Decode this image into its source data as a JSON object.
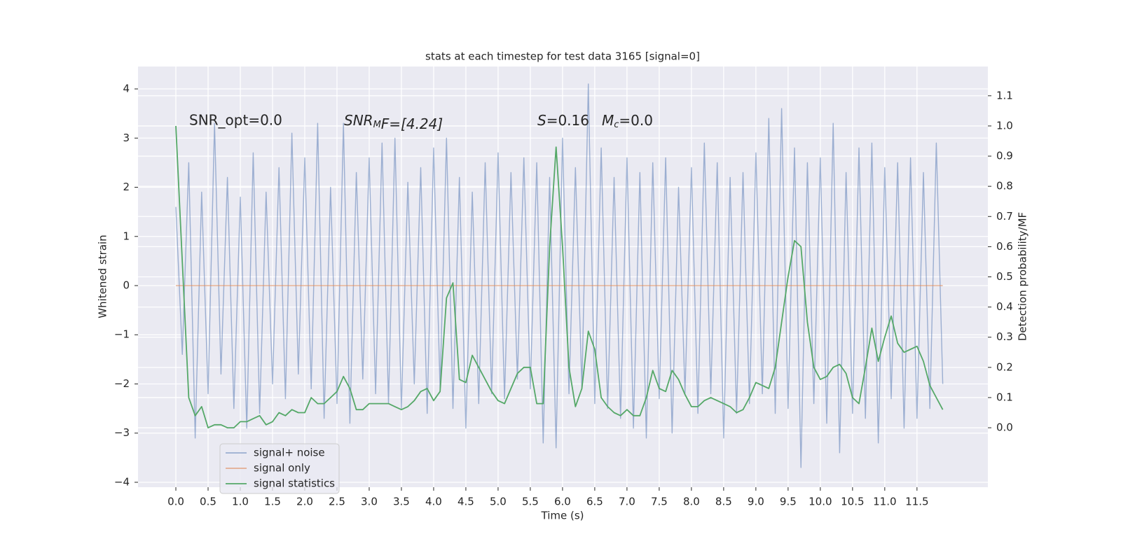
{
  "chart_data": {
    "type": "line",
    "title": "stats at each timestep for test data 3165 [signal=0]",
    "x_label": "Time (s)",
    "y_label": "Whitened strain",
    "y2_label": "Detection probability/MF",
    "annotations": {
      "snr_opt": "SNR_opt=0.0",
      "snr_mf": {
        "base": "SNR",
        "sub": "M",
        "rest": "F=[4.24]"
      },
      "s": {
        "base": "S",
        "rest": "=0.16"
      },
      "mc": {
        "base": "M",
        "sub": "c",
        "rest": "=0.0"
      }
    },
    "grid": true,
    "legend": "lower left",
    "xlim": [
      -0.587,
      12.6
    ],
    "ylim": [
      -4.1,
      4.456
    ],
    "y2lim": [
      -0.197,
      1.197
    ],
    "xticks": [
      {
        "value": 0,
        "label": "0.0"
      },
      {
        "value": 0.5,
        "label": "0.5"
      },
      {
        "value": 1,
        "label": "1.0"
      },
      {
        "value": 1.5,
        "label": "1.5"
      },
      {
        "value": 2,
        "label": "2.0"
      },
      {
        "value": 2.5,
        "label": "2.5"
      },
      {
        "value": 3,
        "label": "3.0"
      },
      {
        "value": 3.5,
        "label": "3.5"
      },
      {
        "value": 4,
        "label": "4.0"
      },
      {
        "value": 4.5,
        "label": "4.5"
      },
      {
        "value": 5,
        "label": "5.0"
      },
      {
        "value": 5.5,
        "label": "5.5"
      },
      {
        "value": 6,
        "label": "6.0"
      },
      {
        "value": 6.5,
        "label": "6.5"
      },
      {
        "value": 7,
        "label": "7.0"
      },
      {
        "value": 7.5,
        "label": "7.5"
      },
      {
        "value": 8,
        "label": "8.0"
      },
      {
        "value": 8.5,
        "label": "8.5"
      },
      {
        "value": 9,
        "label": "9.0"
      },
      {
        "value": 9.5,
        "label": "9.5"
      },
      {
        "value": 10,
        "label": "10.0"
      },
      {
        "value": 10.5,
        "label": "10.5"
      },
      {
        "value": 11,
        "label": "11.0"
      },
      {
        "value": 11.5,
        "label": "11.5"
      }
    ],
    "yticks": [
      {
        "value": -4,
        "label": "−4"
      },
      {
        "value": -3,
        "label": "−3"
      },
      {
        "value": -2,
        "label": "−2"
      },
      {
        "value": -1,
        "label": "−1"
      },
      0,
      1,
      2,
      3,
      4
    ],
    "y2ticks": [
      {
        "value": 0,
        "label": "0.0"
      },
      {
        "value": 0.1,
        "label": "0.1"
      },
      {
        "value": 0.2,
        "label": "0.2"
      },
      {
        "value": 0.3,
        "label": "0.3"
      },
      {
        "value": 0.4,
        "label": "0.4"
      },
      {
        "value": 0.5,
        "label": "0.5"
      },
      {
        "value": 0.6,
        "label": "0.6"
      },
      {
        "value": 0.7,
        "label": "0.7"
      },
      {
        "value": 0.8,
        "label": "0.8"
      },
      {
        "value": 0.9,
        "label": "0.9"
      },
      {
        "value": 1,
        "label": "1.0"
      },
      {
        "value": 1.1,
        "label": "1.1"
      }
    ],
    "x": [
      0,
      0.1,
      0.2,
      0.3,
      0.4,
      0.5,
      0.6,
      0.7,
      0.8,
      0.9,
      1,
      1.1,
      1.2,
      1.3,
      1.4,
      1.5,
      1.6,
      1.7,
      1.8,
      1.9,
      2,
      2.1,
      2.2,
      2.3,
      2.4,
      2.5,
      2.6,
      2.7,
      2.8,
      2.9,
      3,
      3.1,
      3.2,
      3.3,
      3.4,
      3.5,
      3.6,
      3.7,
      3.8,
      3.9,
      4,
      4.1,
      4.2,
      4.3,
      4.4,
      4.5,
      4.6,
      4.7,
      4.8,
      4.9,
      5,
      5.1,
      5.2,
      5.3,
      5.4,
      5.5,
      5.6,
      5.7,
      5.8,
      5.9,
      6,
      6.1,
      6.2,
      6.3,
      6.4,
      6.5,
      6.6,
      6.7,
      6.8,
      6.9,
      7,
      7.1,
      7.2,
      7.3,
      7.4,
      7.5,
      7.6,
      7.7,
      7.8,
      7.9,
      8,
      8.1,
      8.2,
      8.3,
      8.4,
      8.5,
      8.6,
      8.7,
      8.8,
      8.9,
      9,
      9.1,
      9.2,
      9.3,
      9.4,
      9.5,
      9.6,
      9.7,
      9.8,
      9.9,
      10,
      10.1,
      10.2,
      10.3,
      10.4,
      10.5,
      10.6,
      10.7,
      10.8,
      10.9,
      11,
      11.1,
      11.2,
      11.3,
      11.4,
      11.5,
      11.6,
      11.7,
      11.8,
      11.9
    ],
    "series": [
      {
        "name": "signal+ noise",
        "color": "#4c72b0",
        "values": [
          1.6,
          -1.4,
          2.5,
          -3.1,
          1.9,
          -2.2,
          3.3,
          -1.8,
          2.2,
          -2.5,
          1.8,
          -2.9,
          2.7,
          -2.6,
          1.9,
          -2.0,
          2.4,
          -2.3,
          3.1,
          -1.8,
          2.6,
          -2.1,
          3.3,
          -2.7,
          2.0,
          -2.4,
          3.3,
          -2.8,
          2.3,
          -1.9,
          2.6,
          -2.2,
          2.9,
          -2.4,
          3.0,
          -2.5,
          2.1,
          -2.0,
          2.4,
          -2.6,
          2.8,
          -2.1,
          3.0,
          -2.5,
          2.2,
          -2.9,
          1.9,
          -2.4,
          2.5,
          -2.2,
          2.7,
          -2.3,
          2.3,
          -1.9,
          2.6,
          -2.1,
          2.5,
          -3.2,
          2.2,
          -3.3,
          3.0,
          -2.2,
          2.4,
          -2.1,
          4.1,
          -2.4,
          2.8,
          -2.5,
          2.2,
          -2.7,
          2.6,
          -2.9,
          2.3,
          -3.1,
          2.5,
          -2.3,
          2.6,
          -3.0,
          2.0,
          -2.2,
          2.4,
          -2.6,
          2.9,
          -2.2,
          2.5,
          -3.1,
          2.2,
          -2.6,
          2.3,
          -2.4,
          2.7,
          -2.2,
          3.4,
          -2.6,
          3.6,
          -2.5,
          2.8,
          -3.7,
          2.5,
          -2.4,
          2.6,
          -2.8,
          3.3,
          -3.4,
          2.3,
          -2.6,
          2.8,
          -2.7,
          2.9,
          -3.2,
          2.4,
          -2.3,
          2.5,
          -2.9,
          2.6,
          -2.7,
          2.3,
          -2.5,
          2.9,
          -2.0
        ]
      },
      {
        "name": "signal only",
        "color": "#dd8452",
        "values": [
          0,
          0,
          0,
          0,
          0,
          0,
          0,
          0,
          0,
          0,
          0,
          0,
          0,
          0,
          0,
          0,
          0,
          0,
          0,
          0,
          0,
          0,
          0,
          0,
          0,
          0,
          0,
          0,
          0,
          0,
          0,
          0,
          0,
          0,
          0,
          0,
          0,
          0,
          0,
          0,
          0,
          0,
          0,
          0,
          0,
          0,
          0,
          0,
          0,
          0,
          0,
          0,
          0,
          0,
          0,
          0,
          0,
          0,
          0,
          0,
          0,
          0,
          0,
          0,
          0,
          0,
          0,
          0,
          0,
          0,
          0,
          0,
          0,
          0,
          0,
          0,
          0,
          0,
          0,
          0,
          0,
          0,
          0,
          0,
          0,
          0,
          0,
          0,
          0,
          0,
          0,
          0,
          0,
          0,
          0,
          0,
          0,
          0,
          0,
          0,
          0,
          0,
          0,
          0,
          0,
          0,
          0,
          0,
          0,
          0,
          0,
          0,
          0,
          0,
          0,
          0,
          0,
          0,
          0,
          0
        ]
      },
      {
        "name": "signal statistics",
        "color": "#55a868",
        "axis": "y2",
        "values": [
          1.0,
          0.55,
          0.1,
          0.04,
          0.07,
          0.0,
          0.01,
          0.01,
          0.0,
          0.0,
          0.02,
          0.02,
          0.03,
          0.04,
          0.01,
          0.02,
          0.05,
          0.04,
          0.06,
          0.05,
          0.05,
          0.1,
          0.08,
          0.08,
          0.1,
          0.12,
          0.17,
          0.13,
          0.06,
          0.06,
          0.08,
          0.08,
          0.08,
          0.08,
          0.07,
          0.06,
          0.07,
          0.09,
          0.12,
          0.13,
          0.09,
          0.12,
          0.43,
          0.48,
          0.16,
          0.15,
          0.24,
          0.2,
          0.16,
          0.12,
          0.09,
          0.08,
          0.13,
          0.18,
          0.2,
          0.2,
          0.08,
          0.08,
          0.6,
          0.93,
          0.6,
          0.2,
          0.07,
          0.13,
          0.32,
          0.26,
          0.1,
          0.07,
          0.05,
          0.04,
          0.06,
          0.04,
          0.04,
          0.1,
          0.19,
          0.13,
          0.12,
          0.19,
          0.16,
          0.11,
          0.07,
          0.07,
          0.09,
          0.1,
          0.09,
          0.08,
          0.07,
          0.05,
          0.06,
          0.1,
          0.15,
          0.14,
          0.13,
          0.2,
          0.35,
          0.5,
          0.62,
          0.6,
          0.35,
          0.2,
          0.16,
          0.17,
          0.2,
          0.21,
          0.18,
          0.1,
          0.08,
          0.2,
          0.33,
          0.22,
          0.3,
          0.37,
          0.28,
          0.25,
          0.26,
          0.27,
          0.22,
          0.14,
          0.1,
          0.06
        ]
      }
    ]
  }
}
